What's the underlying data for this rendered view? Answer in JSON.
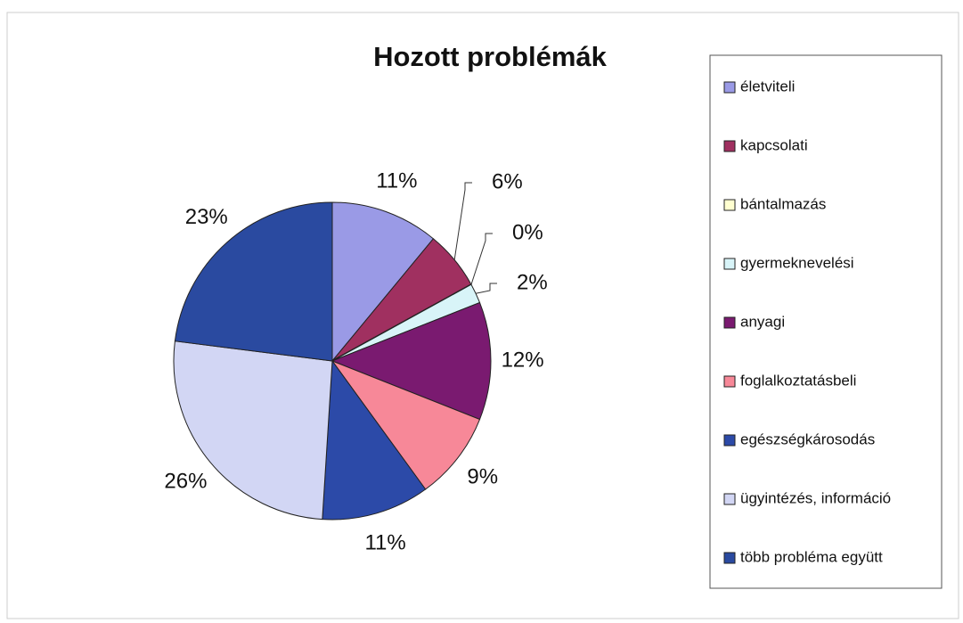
{
  "chart_data": {
    "type": "pie",
    "title": "Hozott problémák",
    "categories": [
      "életviteli",
      "kapcsolati",
      "bántalmazás",
      "gyermeknevelési",
      "anyagi",
      "foglalkoztatásbeli",
      "egészségkárosodás",
      "ügyintézés, információ",
      "több probléma együtt"
    ],
    "values": [
      11,
      6,
      0,
      2,
      12,
      9,
      11,
      26,
      23
    ],
    "value_labels": [
      "11%",
      "6%",
      "0%",
      "2%",
      "12%",
      "9%",
      "11%",
      "26%",
      "23%"
    ],
    "colors": [
      "#9a9ae6",
      "#a03060",
      "#ffffd0",
      "#d8f4f8",
      "#7a1a70",
      "#f78898",
      "#2c4aa8",
      "#d2d6f4",
      "#2a4aa0"
    ],
    "legend": "right"
  }
}
